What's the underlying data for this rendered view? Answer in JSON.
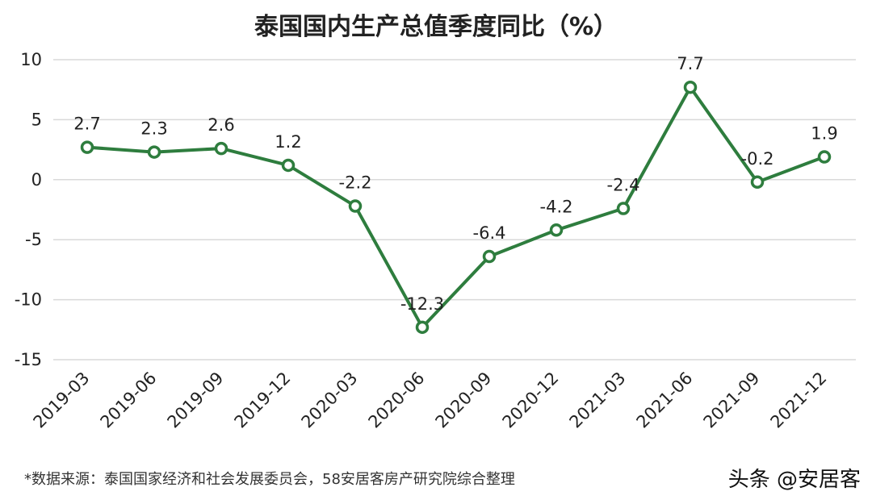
{
  "chart_data": {
    "type": "line",
    "title": "泰国国内生产总值季度同比（%）",
    "categories": [
      "2019-03",
      "2019-06",
      "2019-09",
      "2019-12",
      "2020-03",
      "2020-06",
      "2020-09",
      "2020-12",
      "2021-03",
      "2021-06",
      "2021-09",
      "2021-12"
    ],
    "series": [
      {
        "values": [
          2.7,
          2.3,
          2.6,
          1.2,
          -2.2,
          -12.3,
          -6.4,
          -4.2,
          -2.4,
          7.7,
          -0.2,
          1.9
        ]
      }
    ],
    "data_labels": [
      "2.7",
      "2.3",
      "2.6",
      "1.2",
      "-2.2",
      "-12.3",
      "-6.4",
      "-4.2",
      "-2.4",
      "7.7",
      "-0.2",
      "1.9"
    ],
    "yticks": [
      10,
      5,
      0,
      -5,
      -10,
      -15
    ],
    "ytick_labels": [
      "10",
      "5",
      "0",
      "-5",
      "-10",
      "-15"
    ],
    "ylim": [
      -15,
      10
    ],
    "grid": true,
    "line_color": "#2e7d3e",
    "marker_fill": "#ffffff"
  },
  "footer": {
    "source": "*数据来源：泰国国家经济和社会发展委员会，58安居客房产研究院综合整理",
    "brand": "头条 @安居客"
  }
}
